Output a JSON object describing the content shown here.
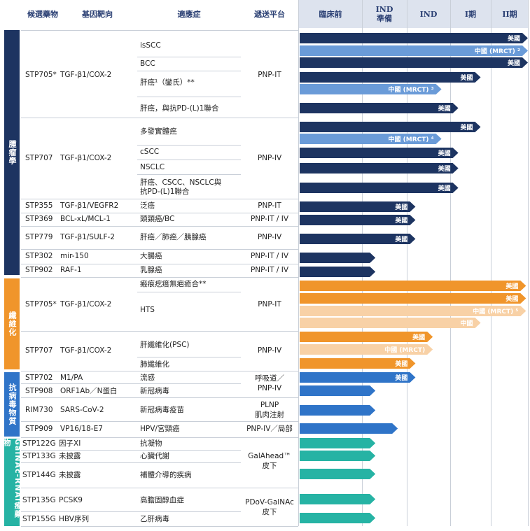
{
  "headers": {
    "candidate": "候選藥物",
    "target": "基因靶向",
    "indication": "適應症",
    "platform": "遞送平台",
    "preclinical": "臨床前",
    "ind_prep_1": "IND",
    "ind_prep_2": "準備",
    "ind": "IND",
    "phase1": "I期",
    "phase2": "II期"
  },
  "categories": {
    "oncology": "腫瘤學",
    "fibrosis": "纖維化",
    "antiviral": "抗病毒物質",
    "galnac": "GalNAc-RNAi療藥物"
  },
  "rows": [
    {
      "drug": "STP705*",
      "target": "TGF-β1/COX-2",
      "platform": [
        "PNP-IT"
      ]
    },
    {
      "drug": "STP707",
      "target": "TGF-β1/COX-2",
      "platform": [
        "PNP-IV"
      ]
    },
    {
      "drug": "STP355",
      "target": "TGF-β1/VEGFR2",
      "platform": [
        "PNP-IT"
      ]
    },
    {
      "drug": "STP369",
      "target": "BCL-xL/MCL-1",
      "platform": [
        "PNP-IT / IV"
      ]
    },
    {
      "drug": "STP779",
      "target": "TGF-β1/SULF-2",
      "platform": [
        "PNP-IV"
      ]
    },
    {
      "drug": "STP302",
      "target": "mir-150",
      "platform": [
        "PNP-IT / IV"
      ]
    },
    {
      "drug": "STP902",
      "target": "RAF-1",
      "platform": [
        "PNP-IT / IV"
      ]
    },
    {
      "drug": "STP705*",
      "target": "TGF-β1/COX-2",
      "platform": [
        "PNP-IT"
      ]
    },
    {
      "drug": "STP707",
      "target": "TGF-β1/COX-2",
      "platform": [
        "PNP-IV"
      ]
    },
    {
      "drug": "STP702",
      "target": "M1/PA",
      "platform": [
        "呼吸道／",
        "PNP-IV"
      ]
    },
    {
      "drug": "STP908",
      "target": "ORF1Ab／N蛋白",
      "platform": []
    },
    {
      "drug": "RIM730",
      "target": "SARS-CoV-2",
      "platform": [
        "PLNP",
        "肌肉注射"
      ]
    },
    {
      "drug": "STP909",
      "target": "VP16/18-E7",
      "platform": [
        "PNP-IV／局部"
      ]
    },
    {
      "drug": "STP122G",
      "target": "因子XI",
      "platform": [
        "GalAhead™",
        "皮下"
      ]
    },
    {
      "drug": "STP133G",
      "target": "未披露",
      "platform": []
    },
    {
      "drug": "STP144G",
      "target": "未披露",
      "platform": []
    },
    {
      "drug": "STP135G",
      "target": "PCSK9",
      "platform": [
        "PDoV-GalNAc",
        "皮下"
      ]
    },
    {
      "drug": "STP155G",
      "target": "HBV序列",
      "platform": []
    }
  ],
  "indications": [
    "isSCC",
    "BCC",
    "肝癌¹（鑾氏）**",
    "肝癌，與抗PD-(L)1聯合",
    "多發實體癌",
    "cSCC",
    "NSCLC",
    "肝癌、CSCC、NSCLC與",
    "抗PD-(L)1聯合",
    "泛癌",
    "頭頸癌/BC",
    "肝癌／肺癌／胰腺癌",
    "大腸癌",
    "乳腺癌",
    "瘢痕疙瘩無疤癒合**",
    "HTS",
    "肝纖維化(PSC)",
    "肺纖維化",
    "流感",
    "新冠病毒",
    "新冠病毒疫苗",
    "HPV/宮頸癌",
    "抗凝物",
    "心臟代謝",
    "補體介導的疾病",
    "高膽固醇血症",
    "乙肝病毒"
  ],
  "colors": {
    "navy": "#1d3461",
    "lightblue": "#6a9bd8",
    "orange": "#f0952b",
    "peach": "#f8d1a6",
    "blue": "#2f74c8",
    "teal": "#26b3a4",
    "grid": "#c9cfd8"
  },
  "chart_data": {
    "type": "bar",
    "stages": [
      "臨床前",
      "IND 準備",
      "IND",
      "I期",
      "II期"
    ],
    "unit": "stage reached (0 = start of 臨床前, 5 = end of II期)",
    "bars": [
      {
        "candidate": "STP705*",
        "indication": "isSCC",
        "label": "美國",
        "value": 5.0,
        "color": "navy"
      },
      {
        "candidate": "STP705*",
        "indication": "isSCC",
        "label": "中國 (MRCT) ²",
        "value": 5.0,
        "color": "lightblue"
      },
      {
        "candidate": "STP705*",
        "indication": "BCC",
        "label": "美國",
        "value": 5.0,
        "color": "navy"
      },
      {
        "candidate": "STP705*",
        "indication": "肝癌¹（鑾氏）**",
        "label": "美國",
        "value": 3.75,
        "color": "navy"
      },
      {
        "candidate": "STP705*",
        "indication": "肝癌¹（鑾氏）**",
        "label": "中國 (MRCT) ³",
        "value": 2.8,
        "color": "lightblue"
      },
      {
        "candidate": "STP705*",
        "indication": "肝癌，與抗PD-(L)1聯合",
        "label": "美國",
        "value": 3.2,
        "color": "navy"
      },
      {
        "candidate": "STP707",
        "indication": "多發實體癌",
        "label": "美國",
        "value": 3.75,
        "color": "navy"
      },
      {
        "candidate": "STP707",
        "indication": "多發實體癌",
        "label": "中國 (MRCT) ⁴",
        "value": 2.8,
        "color": "lightblue"
      },
      {
        "candidate": "STP707",
        "indication": "cSCC",
        "label": "美國",
        "value": 3.2,
        "color": "navy"
      },
      {
        "candidate": "STP707",
        "indication": "NSCLC",
        "label": "美國",
        "value": 3.2,
        "color": "navy"
      },
      {
        "candidate": "STP707",
        "indication": "肝癌、CSCC、NSCLC與抗PD-(L)1聯合",
        "label": "美國",
        "value": 3.2,
        "color": "navy"
      },
      {
        "candidate": "STP355",
        "indication": "泛癌",
        "label": "美國",
        "value": 2.2,
        "color": "navy"
      },
      {
        "candidate": "STP369",
        "indication": "頭頸癌/BC",
        "label": "美國",
        "value": 2.2,
        "color": "navy"
      },
      {
        "candidate": "STP779",
        "indication": "肝癌／肺癌／胰腺癌",
        "label": "美國",
        "value": 2.2,
        "color": "navy"
      },
      {
        "candidate": "STP302",
        "indication": "大腸癌",
        "label": "",
        "value": 1.3,
        "color": "navy"
      },
      {
        "candidate": "STP902",
        "indication": "乳腺癌",
        "label": "",
        "value": 1.3,
        "color": "navy"
      },
      {
        "candidate": "STP705*",
        "indication": "瘢痕疙瘩無疤癒合**",
        "label": "美國",
        "value": 4.95,
        "color": "orange"
      },
      {
        "candidate": "STP705*",
        "indication": "HTS",
        "label": "美國",
        "value": 4.95,
        "color": "orange"
      },
      {
        "candidate": "STP705*",
        "indication": "HTS",
        "label": "中國 (MRCT) ⁵",
        "value": 4.95,
        "color": "peach"
      },
      {
        "candidate": "STP705*",
        "indication": "HTS",
        "label": "中國",
        "value": 3.75,
        "color": "peach"
      },
      {
        "candidate": "STP707",
        "indication": "肝纖維化(PSC)",
        "label": "美國",
        "value": 2.6,
        "color": "orange"
      },
      {
        "candidate": "STP707",
        "indication": "肝纖維化(PSC)",
        "label": "中國 (MRCT)",
        "value": 2.6,
        "color": "peach"
      },
      {
        "candidate": "STP707",
        "indication": "肺纖維化",
        "label": "美國",
        "value": 2.2,
        "color": "orange"
      },
      {
        "candidate": "STP702",
        "indication": "流感",
        "label": "美國",
        "value": 2.2,
        "color": "blue"
      },
      {
        "candidate": "STP908",
        "indication": "新冠病毒",
        "label": "",
        "value": 1.3,
        "color": "blue"
      },
      {
        "candidate": "RIM730",
        "indication": "新冠病毒疫苗",
        "label": "",
        "value": 1.3,
        "color": "blue"
      },
      {
        "candidate": "STP909",
        "indication": "HPV/宮頸癌",
        "label": "",
        "value": 1.8,
        "color": "blue"
      },
      {
        "candidate": "STP122G",
        "indication": "抗凝物",
        "label": "",
        "value": 1.3,
        "color": "teal"
      },
      {
        "candidate": "STP133G",
        "indication": "心臟代謝",
        "label": "",
        "value": 1.3,
        "color": "teal"
      },
      {
        "candidate": "STP144G",
        "indication": "補體介導的疾病",
        "label": "",
        "value": 1.3,
        "color": "teal"
      },
      {
        "candidate": "STP135G",
        "indication": "高膽固醇血症",
        "label": "",
        "value": 1.3,
        "color": "teal"
      },
      {
        "candidate": "STP155G",
        "indication": "乙肝病毒",
        "label": "",
        "value": 1.3,
        "color": "teal"
      }
    ]
  }
}
